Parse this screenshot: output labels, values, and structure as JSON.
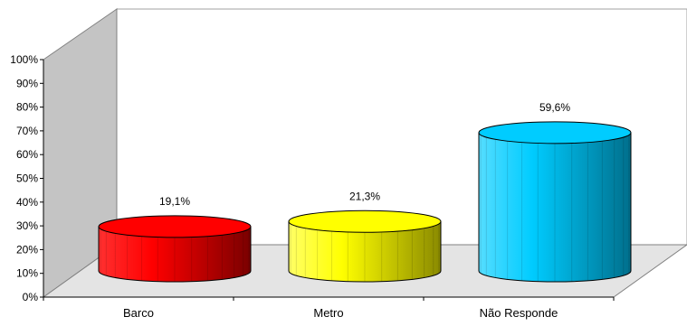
{
  "chart_data": {
    "type": "bar",
    "style": "3d-cylinder",
    "categories": [
      "Barco",
      "Metro",
      "Não Responde"
    ],
    "values": [
      19.1,
      21.3,
      59.6
    ],
    "data_labels": [
      "19,1%",
      "21,3%",
      "59,6%"
    ],
    "colors": [
      "#ff0000",
      "#ffff00",
      "#00ccff"
    ],
    "y_ticks": [
      "0%",
      "10%",
      "20%",
      "30%",
      "40%",
      "50%",
      "60%",
      "70%",
      "80%",
      "90%",
      "100%"
    ],
    "ylim": [
      0,
      100
    ],
    "grid": false,
    "legend": "none"
  }
}
